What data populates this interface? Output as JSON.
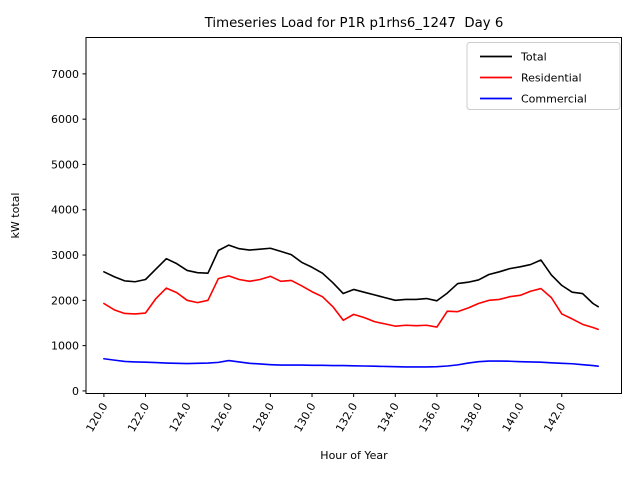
{
  "chart_data": {
    "type": "line",
    "title": "Timeseries Load for P1R p1rhs6_1247  Day 6",
    "xlabel": "Hour of Year",
    "ylabel": "kW total",
    "xlim": [
      119.14,
      144.87
    ],
    "ylim": [
      -57,
      7803
    ],
    "xticks": [
      120,
      122,
      124,
      126,
      128,
      130,
      132,
      134,
      136,
      138,
      140,
      142
    ],
    "xtick_labels": [
      "120.0",
      "122.0",
      "124.0",
      "126.0",
      "128.0",
      "130.0",
      "132.0",
      "134.0",
      "136.0",
      "138.0",
      "140.0",
      "142.0"
    ],
    "yticks": [
      0,
      1000,
      2000,
      3000,
      4000,
      5000,
      6000,
      7000
    ],
    "ytick_labels": [
      "0",
      "1000",
      "2000",
      "3000",
      "4000",
      "5000",
      "6000",
      "7000"
    ],
    "grid": false,
    "legend_position": "upper right",
    "x": [
      120.0,
      120.5,
      121.0,
      121.5,
      122.0,
      122.5,
      123.0,
      123.5,
      124.0,
      124.5,
      125.0,
      125.5,
      126.0,
      126.5,
      127.0,
      127.5,
      128.0,
      128.5,
      129.0,
      129.5,
      130.0,
      130.5,
      131.0,
      131.5,
      132.0,
      132.5,
      133.0,
      133.5,
      134.0,
      134.5,
      135.0,
      135.5,
      136.0,
      136.5,
      137.0,
      137.5,
      138.0,
      138.5,
      139.0,
      139.5,
      140.0,
      140.5,
      141.0,
      141.5,
      142.0,
      142.5,
      143.0,
      143.5,
      143.75
    ],
    "series": [
      {
        "name": "Total",
        "color": "#000000",
        "values": [
          2630,
          2520,
          2430,
          2410,
          2460,
          2690,
          2920,
          2810,
          2660,
          2610,
          2600,
          3100,
          3220,
          3140,
          3110,
          3130,
          3150,
          3080,
          3010,
          2840,
          2730,
          2600,
          2390,
          2150,
          2240,
          2180,
          2120,
          2060,
          2000,
          2020,
          2020,
          2040,
          1990,
          2160,
          2370,
          2400,
          2450,
          2570,
          2630,
          2700,
          2740,
          2790,
          2890,
          2560,
          2330,
          2180,
          2150,
          1930,
          1860
        ]
      },
      {
        "name": "Residential",
        "color": "#ff0000",
        "values": [
          1930,
          1790,
          1710,
          1700,
          1720,
          2040,
          2270,
          2170,
          2000,
          1950,
          2000,
          2480,
          2540,
          2460,
          2420,
          2460,
          2530,
          2420,
          2440,
          2320,
          2190,
          2080,
          1860,
          1560,
          1690,
          1620,
          1530,
          1480,
          1430,
          1450,
          1440,
          1450,
          1410,
          1760,
          1750,
          1830,
          1930,
          2000,
          2020,
          2080,
          2110,
          2200,
          2260,
          2060,
          1700,
          1590,
          1470,
          1400,
          1360
        ]
      },
      {
        "name": "Commercial",
        "color": "#0000ff",
        "values": [
          710,
          680,
          650,
          640,
          635,
          625,
          615,
          610,
          605,
          610,
          615,
          630,
          670,
          640,
          610,
          595,
          580,
          570,
          570,
          570,
          565,
          565,
          560,
          560,
          555,
          550,
          545,
          540,
          535,
          530,
          530,
          530,
          535,
          550,
          575,
          615,
          645,
          660,
          660,
          655,
          645,
          640,
          635,
          620,
          610,
          600,
          580,
          560,
          545
        ]
      }
    ]
  }
}
